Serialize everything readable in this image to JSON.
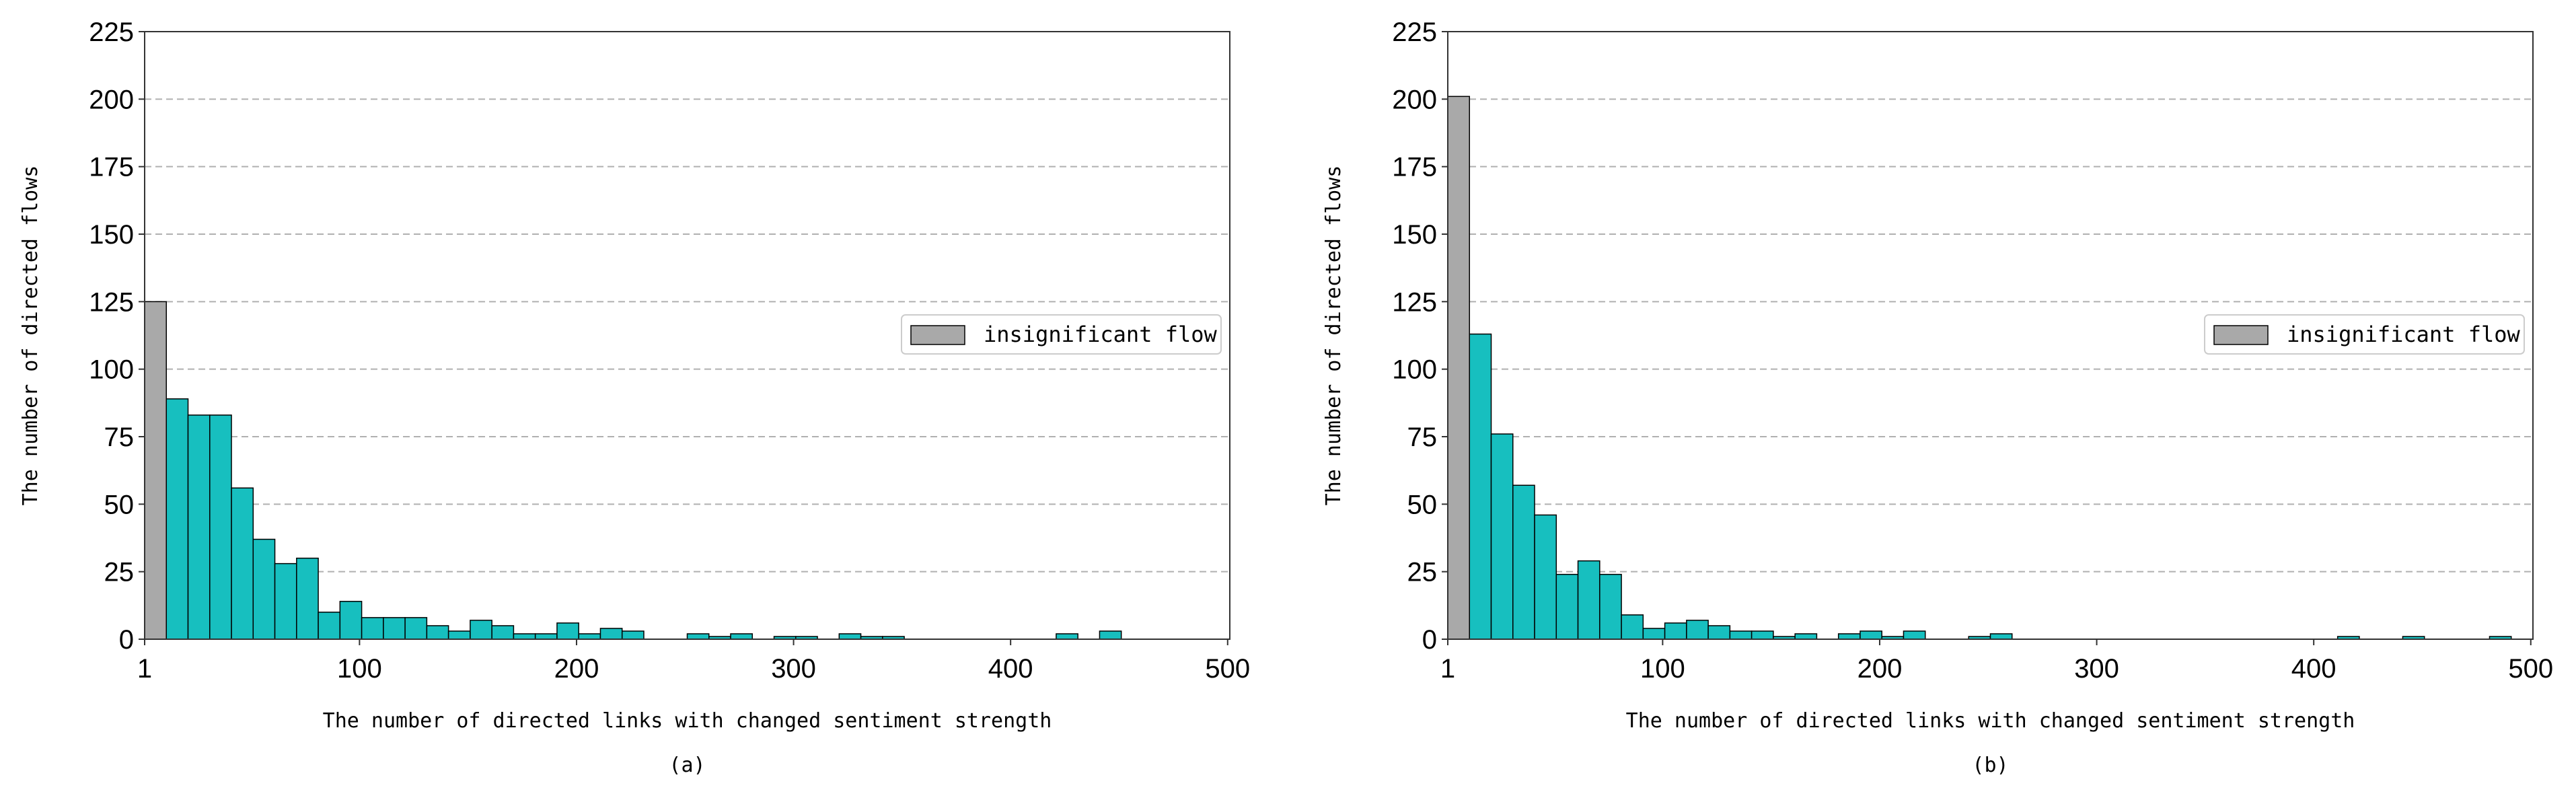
{
  "chart_data": [
    {
      "type": "bar",
      "panel_label": "(a)",
      "xlabel": "The number of directed links with changed sentiment strength",
      "ylabel": "The number of directed flows",
      "xlim": [
        1,
        501
      ],
      "ylim": [
        0,
        225
      ],
      "x_ticks": [
        "1",
        "100",
        "200",
        "300",
        "400",
        "500"
      ],
      "y_ticks": [
        "0",
        "25",
        "50",
        "75",
        "100",
        "125",
        "150",
        "175",
        "200",
        "225"
      ],
      "grid": "horizontal dashed",
      "legend_position": "right",
      "legend": [
        "insignificant flow"
      ],
      "bin_width": 10,
      "insignificant_bin": {
        "x_start": 1,
        "x_end": 11,
        "value": 125,
        "color": "#a9a9a9"
      },
      "bar_color": "#17bfbf",
      "bars": [
        {
          "x_start": 11,
          "value": 89
        },
        {
          "x_start": 21,
          "value": 83
        },
        {
          "x_start": 31,
          "value": 83
        },
        {
          "x_start": 41,
          "value": 56
        },
        {
          "x_start": 51,
          "value": 37
        },
        {
          "x_start": 61,
          "value": 28
        },
        {
          "x_start": 71,
          "value": 30
        },
        {
          "x_start": 81,
          "value": 10
        },
        {
          "x_start": 91,
          "value": 14
        },
        {
          "x_start": 101,
          "value": 8
        },
        {
          "x_start": 111,
          "value": 8
        },
        {
          "x_start": 121,
          "value": 8
        },
        {
          "x_start": 131,
          "value": 5
        },
        {
          "x_start": 141,
          "value": 3
        },
        {
          "x_start": 151,
          "value": 7
        },
        {
          "x_start": 161,
          "value": 5
        },
        {
          "x_start": 171,
          "value": 2
        },
        {
          "x_start": 181,
          "value": 2
        },
        {
          "x_start": 191,
          "value": 6
        },
        {
          "x_start": 201,
          "value": 2
        },
        {
          "x_start": 211,
          "value": 4
        },
        {
          "x_start": 221,
          "value": 3
        },
        {
          "x_start": 251,
          "value": 2
        },
        {
          "x_start": 261,
          "value": 1
        },
        {
          "x_start": 271,
          "value": 2
        },
        {
          "x_start": 291,
          "value": 1
        },
        {
          "x_start": 301,
          "value": 1
        },
        {
          "x_start": 321,
          "value": 2
        },
        {
          "x_start": 331,
          "value": 1
        },
        {
          "x_start": 341,
          "value": 1
        },
        {
          "x_start": 421,
          "value": 2
        },
        {
          "x_start": 441,
          "value": 3
        }
      ]
    },
    {
      "type": "bar",
      "panel_label": "(b)",
      "xlabel": "The number of directed links with changed sentiment strength",
      "ylabel": "The number of directed flows",
      "xlim": [
        1,
        501
      ],
      "ylim": [
        0,
        225
      ],
      "x_ticks": [
        "1",
        "100",
        "200",
        "300",
        "400",
        "500"
      ],
      "y_ticks": [
        "0",
        "25",
        "50",
        "75",
        "100",
        "125",
        "150",
        "175",
        "200",
        "225"
      ],
      "grid": "horizontal dashed",
      "legend_position": "right",
      "legend": [
        "insignificant flow"
      ],
      "bin_width": 10,
      "insignificant_bin": {
        "x_start": 1,
        "x_end": 11,
        "value": 201,
        "color": "#a9a9a9"
      },
      "bar_color": "#17bfbf",
      "bars": [
        {
          "x_start": 11,
          "value": 113
        },
        {
          "x_start": 21,
          "value": 76
        },
        {
          "x_start": 31,
          "value": 57
        },
        {
          "x_start": 41,
          "value": 46
        },
        {
          "x_start": 51,
          "value": 24
        },
        {
          "x_start": 61,
          "value": 29
        },
        {
          "x_start": 71,
          "value": 24
        },
        {
          "x_start": 81,
          "value": 9
        },
        {
          "x_start": 91,
          "value": 4
        },
        {
          "x_start": 101,
          "value": 6
        },
        {
          "x_start": 111,
          "value": 7
        },
        {
          "x_start": 121,
          "value": 5
        },
        {
          "x_start": 131,
          "value": 3
        },
        {
          "x_start": 141,
          "value": 3
        },
        {
          "x_start": 151,
          "value": 1
        },
        {
          "x_start": 161,
          "value": 2
        },
        {
          "x_start": 181,
          "value": 2
        },
        {
          "x_start": 191,
          "value": 3
        },
        {
          "x_start": 201,
          "value": 1
        },
        {
          "x_start": 211,
          "value": 3
        },
        {
          "x_start": 241,
          "value": 1
        },
        {
          "x_start": 251,
          "value": 2
        },
        {
          "x_start": 411,
          "value": 1
        },
        {
          "x_start": 441,
          "value": 1
        },
        {
          "x_start": 481,
          "value": 1
        }
      ]
    }
  ]
}
